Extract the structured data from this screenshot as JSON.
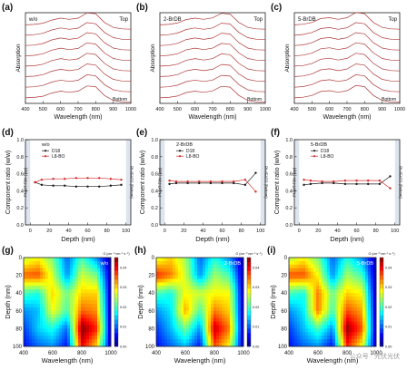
{
  "figure": {
    "row1": {
      "panels": [
        {
          "letter": "(a)",
          "tag": "w/o",
          "top": "Top",
          "bottom": "Bottom"
        },
        {
          "letter": "(b)",
          "tag": "2-BrDB",
          "top": "Top",
          "bottom": "Bottom"
        },
        {
          "letter": "(c)",
          "tag": "5-BrDB",
          "top": "Top",
          "bottom": "Bottom"
        }
      ],
      "ylabel": "Absorption",
      "xlabel": "Wavelength (nm)",
      "xticks": [
        "400",
        "500",
        "600",
        "700",
        "800",
        "900",
        "1000"
      ]
    },
    "row2": {
      "panels": [
        {
          "letter": "(d)",
          "tag": "w/o"
        },
        {
          "letter": "(e)",
          "tag": "2-BrDB"
        },
        {
          "letter": "(f)",
          "tag": "5-BrDB"
        }
      ],
      "ylabel": "Component ratio (w/w)",
      "xlabel": "Depth (nm)",
      "side_left": "PNDIT-F3N (Top)",
      "side_right": "Pt-4FAD2 (Bottom)",
      "legend": [
        "D18",
        "L8-BO"
      ],
      "yticks": [
        "0.0",
        "0.2",
        "0.4",
        "0.6",
        "0.8",
        "1.0"
      ],
      "xticks": [
        "0",
        "20",
        "40",
        "60",
        "80",
        "100"
      ]
    },
    "row3": {
      "panels": [
        {
          "letter": "(g)",
          "tag": "w/o"
        },
        {
          "letter": "(h)",
          "tag": "2-BrDB"
        },
        {
          "letter": "(i)",
          "tag": "5-BrDB"
        }
      ],
      "ylabel": "Depth (nm)",
      "xlabel": "Wavelength (nm)",
      "yticks": [
        "0",
        "20",
        "40",
        "60",
        "80",
        "100"
      ],
      "xticks": [
        "400",
        "600",
        "800",
        "1000"
      ],
      "colorbar_title": "G (cm⁻³ nm⁻¹ s⁻¹)",
      "colorbar_ticks": [
        "0.04",
        "0.03",
        "0.02",
        "0.01",
        "0.00"
      ]
    },
    "watermark": "公众号 · 光伏光伏"
  },
  "colors": {
    "spectra": "#b03a3a",
    "d18": "#1a1a1a",
    "l8bo": "#d42a2a",
    "shade": "#dde4ee"
  },
  "chart_data": [
    {
      "type": "line",
      "title": "(a)",
      "xlabel": "Wavelength (nm)",
      "ylabel": "Absorption",
      "x": [
        400,
        450,
        500,
        550,
        600,
        650,
        700,
        750,
        800,
        850,
        900,
        950,
        1000
      ],
      "series": [
        {
          "values": [
            0.28,
            0.3,
            0.36,
            0.52,
            0.62,
            0.56,
            0.62,
            0.88,
            0.84,
            0.4,
            0.15,
            0.08,
            0.06
          ]
        },
        {
          "values": [
            0.28,
            0.31,
            0.38,
            0.55,
            0.65,
            0.58,
            0.64,
            0.92,
            0.86,
            0.42,
            0.16,
            0.08,
            0.06
          ]
        },
        {
          "values": [
            0.29,
            0.31,
            0.39,
            0.57,
            0.67,
            0.6,
            0.66,
            0.94,
            0.88,
            0.43,
            0.16,
            0.08,
            0.06
          ]
        },
        {
          "values": [
            0.29,
            0.32,
            0.4,
            0.58,
            0.68,
            0.61,
            0.67,
            0.95,
            0.89,
            0.44,
            0.16,
            0.08,
            0.06
          ]
        },
        {
          "values": [
            0.3,
            0.32,
            0.4,
            0.58,
            0.68,
            0.61,
            0.67,
            0.95,
            0.89,
            0.44,
            0.16,
            0.08,
            0.06
          ]
        },
        {
          "values": [
            0.3,
            0.32,
            0.4,
            0.57,
            0.67,
            0.6,
            0.66,
            0.94,
            0.88,
            0.43,
            0.16,
            0.08,
            0.06
          ]
        },
        {
          "values": [
            0.29,
            0.31,
            0.38,
            0.55,
            0.65,
            0.58,
            0.64,
            0.92,
            0.86,
            0.42,
            0.16,
            0.08,
            0.06
          ]
        },
        {
          "values": [
            0.28,
            0.3,
            0.36,
            0.52,
            0.62,
            0.56,
            0.62,
            0.88,
            0.84,
            0.4,
            0.15,
            0.08,
            0.06
          ]
        }
      ],
      "xlim": [
        400,
        1000
      ],
      "grid": false
    },
    {
      "type": "line",
      "title": "(b)",
      "xlabel": "Wavelength (nm)",
      "ylabel": "Absorption",
      "x": [
        400,
        450,
        500,
        550,
        600,
        650,
        700,
        750,
        800,
        850,
        900,
        950,
        1000
      ],
      "series": [
        {
          "values": [
            0.28,
            0.3,
            0.37,
            0.55,
            0.62,
            0.56,
            0.63,
            0.86,
            0.82,
            0.4,
            0.15,
            0.08,
            0.06
          ]
        },
        {
          "values": [
            0.28,
            0.31,
            0.39,
            0.57,
            0.65,
            0.58,
            0.65,
            0.89,
            0.85,
            0.42,
            0.16,
            0.08,
            0.06
          ]
        },
        {
          "values": [
            0.29,
            0.31,
            0.4,
            0.59,
            0.67,
            0.6,
            0.67,
            0.91,
            0.87,
            0.43,
            0.16,
            0.08,
            0.06
          ]
        },
        {
          "values": [
            0.29,
            0.32,
            0.4,
            0.6,
            0.68,
            0.61,
            0.68,
            0.92,
            0.88,
            0.44,
            0.16,
            0.08,
            0.06
          ]
        },
        {
          "values": [
            0.3,
            0.32,
            0.4,
            0.6,
            0.68,
            0.61,
            0.68,
            0.92,
            0.88,
            0.44,
            0.16,
            0.08,
            0.06
          ]
        },
        {
          "values": [
            0.3,
            0.32,
            0.4,
            0.59,
            0.67,
            0.6,
            0.67,
            0.91,
            0.87,
            0.43,
            0.16,
            0.08,
            0.06
          ]
        },
        {
          "values": [
            0.29,
            0.31,
            0.39,
            0.57,
            0.65,
            0.58,
            0.65,
            0.89,
            0.85,
            0.42,
            0.16,
            0.08,
            0.06
          ]
        },
        {
          "values": [
            0.28,
            0.3,
            0.37,
            0.55,
            0.62,
            0.56,
            0.63,
            0.86,
            0.82,
            0.4,
            0.15,
            0.08,
            0.06
          ]
        }
      ],
      "xlim": [
        400,
        1000
      ],
      "grid": false
    },
    {
      "type": "line",
      "title": "(c)",
      "xlabel": "Wavelength (nm)",
      "ylabel": "Absorption",
      "x": [
        400,
        450,
        500,
        550,
        600,
        650,
        700,
        750,
        800,
        850,
        900,
        950,
        1000
      ],
      "series": [
        {
          "values": [
            0.28,
            0.31,
            0.4,
            0.6,
            0.64,
            0.56,
            0.64,
            0.9,
            0.84,
            0.4,
            0.15,
            0.08,
            0.06
          ]
        },
        {
          "values": [
            0.28,
            0.32,
            0.42,
            0.62,
            0.67,
            0.58,
            0.66,
            0.92,
            0.86,
            0.42,
            0.16,
            0.08,
            0.06
          ]
        },
        {
          "values": [
            0.29,
            0.32,
            0.43,
            0.64,
            0.69,
            0.6,
            0.68,
            0.94,
            0.88,
            0.43,
            0.16,
            0.08,
            0.06
          ]
        },
        {
          "values": [
            0.29,
            0.33,
            0.43,
            0.65,
            0.7,
            0.61,
            0.69,
            0.95,
            0.89,
            0.44,
            0.16,
            0.08,
            0.06
          ]
        },
        {
          "values": [
            0.3,
            0.33,
            0.43,
            0.65,
            0.7,
            0.61,
            0.69,
            0.95,
            0.89,
            0.44,
            0.16,
            0.08,
            0.06
          ]
        },
        {
          "values": [
            0.3,
            0.33,
            0.43,
            0.64,
            0.69,
            0.6,
            0.68,
            0.94,
            0.88,
            0.43,
            0.16,
            0.08,
            0.06
          ]
        },
        {
          "values": [
            0.29,
            0.32,
            0.42,
            0.62,
            0.67,
            0.58,
            0.66,
            0.92,
            0.86,
            0.42,
            0.16,
            0.08,
            0.06
          ]
        },
        {
          "values": [
            0.28,
            0.31,
            0.4,
            0.6,
            0.64,
            0.56,
            0.64,
            0.9,
            0.84,
            0.4,
            0.15,
            0.08,
            0.06
          ]
        }
      ],
      "xlim": [
        400,
        1000
      ],
      "grid": false
    },
    {
      "type": "line",
      "title": "(d)",
      "xlabel": "Depth (nm)",
      "ylabel": "Component ratio (w/w)",
      "x": [
        5,
        12,
        24,
        36,
        48,
        60,
        72,
        84,
        95
      ],
      "series": [
        {
          "name": "D18",
          "values": [
            0.5,
            0.47,
            0.46,
            0.46,
            0.45,
            0.45,
            0.45,
            0.46,
            0.47
          ]
        },
        {
          "name": "L8-BO",
          "values": [
            0.5,
            0.53,
            0.54,
            0.54,
            0.55,
            0.55,
            0.55,
            0.54,
            0.53
          ]
        }
      ],
      "xlim": [
        -5,
        105
      ],
      "ylim": [
        0,
        1
      ],
      "grid": false,
      "legend": "top-left"
    },
    {
      "type": "line",
      "title": "(e)",
      "xlabel": "Depth (nm)",
      "ylabel": "Component ratio (w/w)",
      "x": [
        5,
        12,
        24,
        36,
        48,
        60,
        72,
        84,
        95
      ],
      "series": [
        {
          "name": "D18",
          "values": [
            0.48,
            0.49,
            0.49,
            0.49,
            0.49,
            0.49,
            0.49,
            0.47,
            0.61
          ]
        },
        {
          "name": "L8-BO",
          "values": [
            0.52,
            0.51,
            0.51,
            0.51,
            0.51,
            0.51,
            0.51,
            0.53,
            0.39
          ]
        }
      ],
      "xlim": [
        -5,
        105
      ],
      "ylim": [
        0,
        1
      ],
      "grid": false,
      "legend": "top-left"
    },
    {
      "type": "line",
      "title": "(f)",
      "xlabel": "Depth (nm)",
      "ylabel": "Component ratio (w/w)",
      "x": [
        5,
        12,
        24,
        36,
        48,
        60,
        72,
        84,
        95
      ],
      "series": [
        {
          "name": "D18",
          "values": [
            0.47,
            0.48,
            0.49,
            0.49,
            0.48,
            0.48,
            0.48,
            0.48,
            0.57
          ]
        },
        {
          "name": "L8-BO",
          "values": [
            0.53,
            0.52,
            0.51,
            0.51,
            0.52,
            0.52,
            0.52,
            0.52,
            0.43
          ]
        }
      ],
      "xlim": [
        -5,
        105
      ],
      "ylim": [
        0,
        1
      ],
      "grid": false,
      "legend": "top-left"
    },
    {
      "type": "heatmap",
      "title": "(g)",
      "xlabel": "Wavelength (nm)",
      "ylabel": "Depth (nm)",
      "x": [
        400,
        500,
        600,
        700,
        800,
        900,
        1000
      ],
      "y": [
        0,
        20,
        40,
        60,
        80,
        100
      ],
      "z": [
        [
          0.025,
          0.028,
          0.022,
          0.01,
          0.02,
          0.012,
          0.002
        ],
        [
          0.035,
          0.036,
          0.026,
          0.012,
          0.026,
          0.022,
          0.002
        ],
        [
          0.02,
          0.018,
          0.03,
          0.022,
          0.03,
          0.03,
          0.002
        ],
        [
          0.012,
          0.014,
          0.028,
          0.02,
          0.035,
          0.033,
          0.002
        ],
        [
          0.008,
          0.015,
          0.018,
          0.01,
          0.045,
          0.038,
          0.002
        ],
        [
          0.006,
          0.01,
          0.012,
          0.006,
          0.04,
          0.03,
          0.002
        ]
      ],
      "colorbar_range": [
        0,
        0.045
      ]
    },
    {
      "type": "heatmap",
      "title": "(h)",
      "xlabel": "Wavelength (nm)",
      "ylabel": "Depth (nm)",
      "x": [
        400,
        500,
        600,
        700,
        800,
        900,
        1000
      ],
      "y": [
        0,
        20,
        40,
        60,
        80,
        100
      ],
      "z": [
        [
          0.026,
          0.03,
          0.024,
          0.01,
          0.018,
          0.012,
          0.002
        ],
        [
          0.038,
          0.034,
          0.026,
          0.012,
          0.024,
          0.02,
          0.002
        ],
        [
          0.02,
          0.018,
          0.028,
          0.026,
          0.028,
          0.028,
          0.002
        ],
        [
          0.012,
          0.016,
          0.032,
          0.02,
          0.034,
          0.03,
          0.002
        ],
        [
          0.008,
          0.014,
          0.022,
          0.012,
          0.042,
          0.034,
          0.002
        ],
        [
          0.006,
          0.01,
          0.014,
          0.006,
          0.036,
          0.028,
          0.002
        ]
      ],
      "colorbar_range": [
        0,
        0.045
      ]
    },
    {
      "type": "heatmap",
      "title": "(i)",
      "xlabel": "Wavelength (nm)",
      "ylabel": "Depth (nm)",
      "x": [
        400,
        500,
        600,
        700,
        800,
        900,
        1000
      ],
      "y": [
        0,
        20,
        40,
        60,
        80,
        100
      ],
      "z": [
        [
          0.024,
          0.028,
          0.022,
          0.01,
          0.018,
          0.012,
          0.002
        ],
        [
          0.036,
          0.036,
          0.028,
          0.012,
          0.024,
          0.02,
          0.002
        ],
        [
          0.02,
          0.018,
          0.034,
          0.022,
          0.03,
          0.028,
          0.002
        ],
        [
          0.012,
          0.016,
          0.034,
          0.02,
          0.036,
          0.032,
          0.002
        ],
        [
          0.008,
          0.014,
          0.02,
          0.012,
          0.044,
          0.036,
          0.002
        ],
        [
          0.006,
          0.01,
          0.012,
          0.006,
          0.038,
          0.028,
          0.002
        ]
      ],
      "colorbar_range": [
        0,
        0.045
      ]
    }
  ]
}
